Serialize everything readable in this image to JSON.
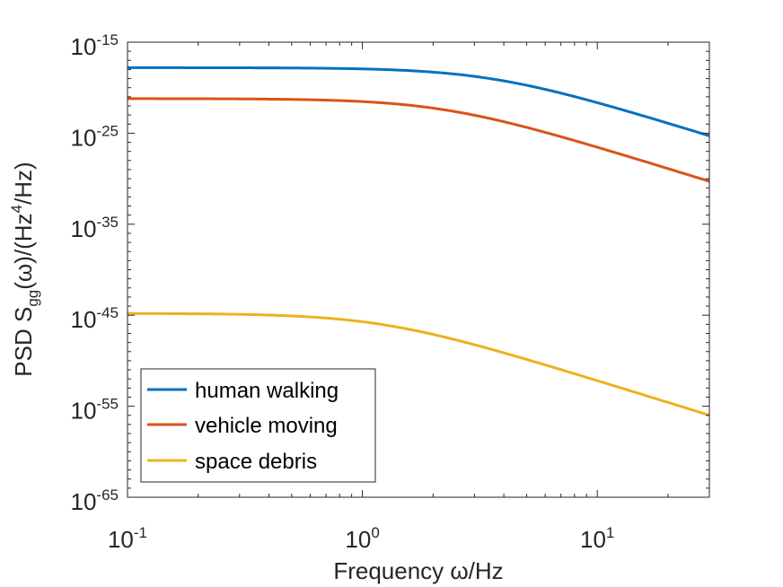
{
  "chart_data": {
    "type": "line",
    "xscale": "log",
    "yscale": "log",
    "xlim": [
      0.1,
      30
    ],
    "ylim_exponent": [
      -65,
      -15
    ],
    "x_ticks": [
      {
        "base": "10",
        "exp": "-1",
        "value": 0.1
      },
      {
        "base": "10",
        "exp": "0",
        "value": 1
      },
      {
        "base": "10",
        "exp": "1",
        "value": 10
      }
    ],
    "y_ticks": [
      {
        "base": "10",
        "exp": "-15",
        "value_exp": -15
      },
      {
        "base": "10",
        "exp": "-25",
        "value_exp": -25
      },
      {
        "base": "10",
        "exp": "-35",
        "value_exp": -35
      },
      {
        "base": "10",
        "exp": "-45",
        "value_exp": -45
      },
      {
        "base": "10",
        "exp": "-55",
        "value_exp": -55
      },
      {
        "base": "10",
        "exp": "-65",
        "value_exp": -65
      }
    ],
    "xlabel": {
      "text": "Frequency  ω/Hz"
    },
    "ylabel": {
      "prefix": "PSD   S",
      "sub": "gg",
      "mid": "(ω)/(Hz",
      "sup": "4",
      "suffix": "/Hz)"
    },
    "legend_position": "bottom-left",
    "series": [
      {
        "name": "human walking",
        "color": "#0072BD",
        "low_freq_log10": -17.8,
        "knee_hz": 3.5,
        "order": 4
      },
      {
        "name": "vehicle moving",
        "color": "#D95319",
        "low_freq_log10": -21.2,
        "knee_hz": 2.2,
        "order": 4
      },
      {
        "name": "space debris",
        "color": "#EDB120",
        "low_freq_log10": -44.8,
        "knee_hz": 1.2,
        "order": 4
      }
    ]
  }
}
